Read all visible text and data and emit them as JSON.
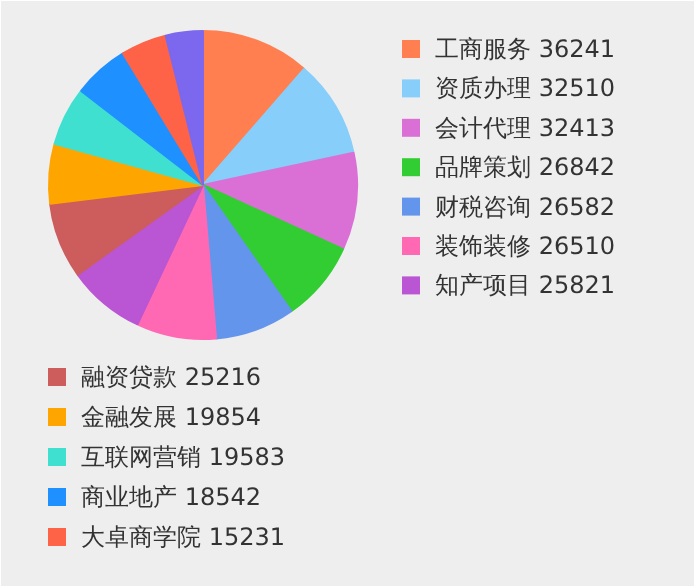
{
  "chart_data": {
    "type": "pie",
    "categories": [
      "工商服务",
      "资质办理",
      "会计代理",
      "品牌策划",
      "财税咨询",
      "装饰装修",
      "知产项目",
      "融资贷款",
      "金融发展",
      "互联网营销",
      "商业地产",
      "大卓商学院",
      null
    ],
    "values": [
      36241,
      32510,
      32413,
      26842,
      26582,
      26510,
      25821,
      25216,
      19854,
      19583,
      18542,
      15231,
      12400
    ],
    "colors": [
      "#ff7f50",
      "#87cefa",
      "#da70d6",
      "#32cd32",
      "#6495ed",
      "#ff69b4",
      "#ba55d3",
      "#cd5c5c",
      "#ffa500",
      "#40e0d0",
      "#1e90ff",
      "#ff6347",
      "#7b68ee"
    ],
    "value_labels": [
      "36241",
      "32510",
      "32413",
      "26842",
      "26582",
      "26510",
      "25821",
      "25216",
      "19854",
      "19583",
      "18542",
      "15231",
      null
    ],
    "legend": "right"
  }
}
